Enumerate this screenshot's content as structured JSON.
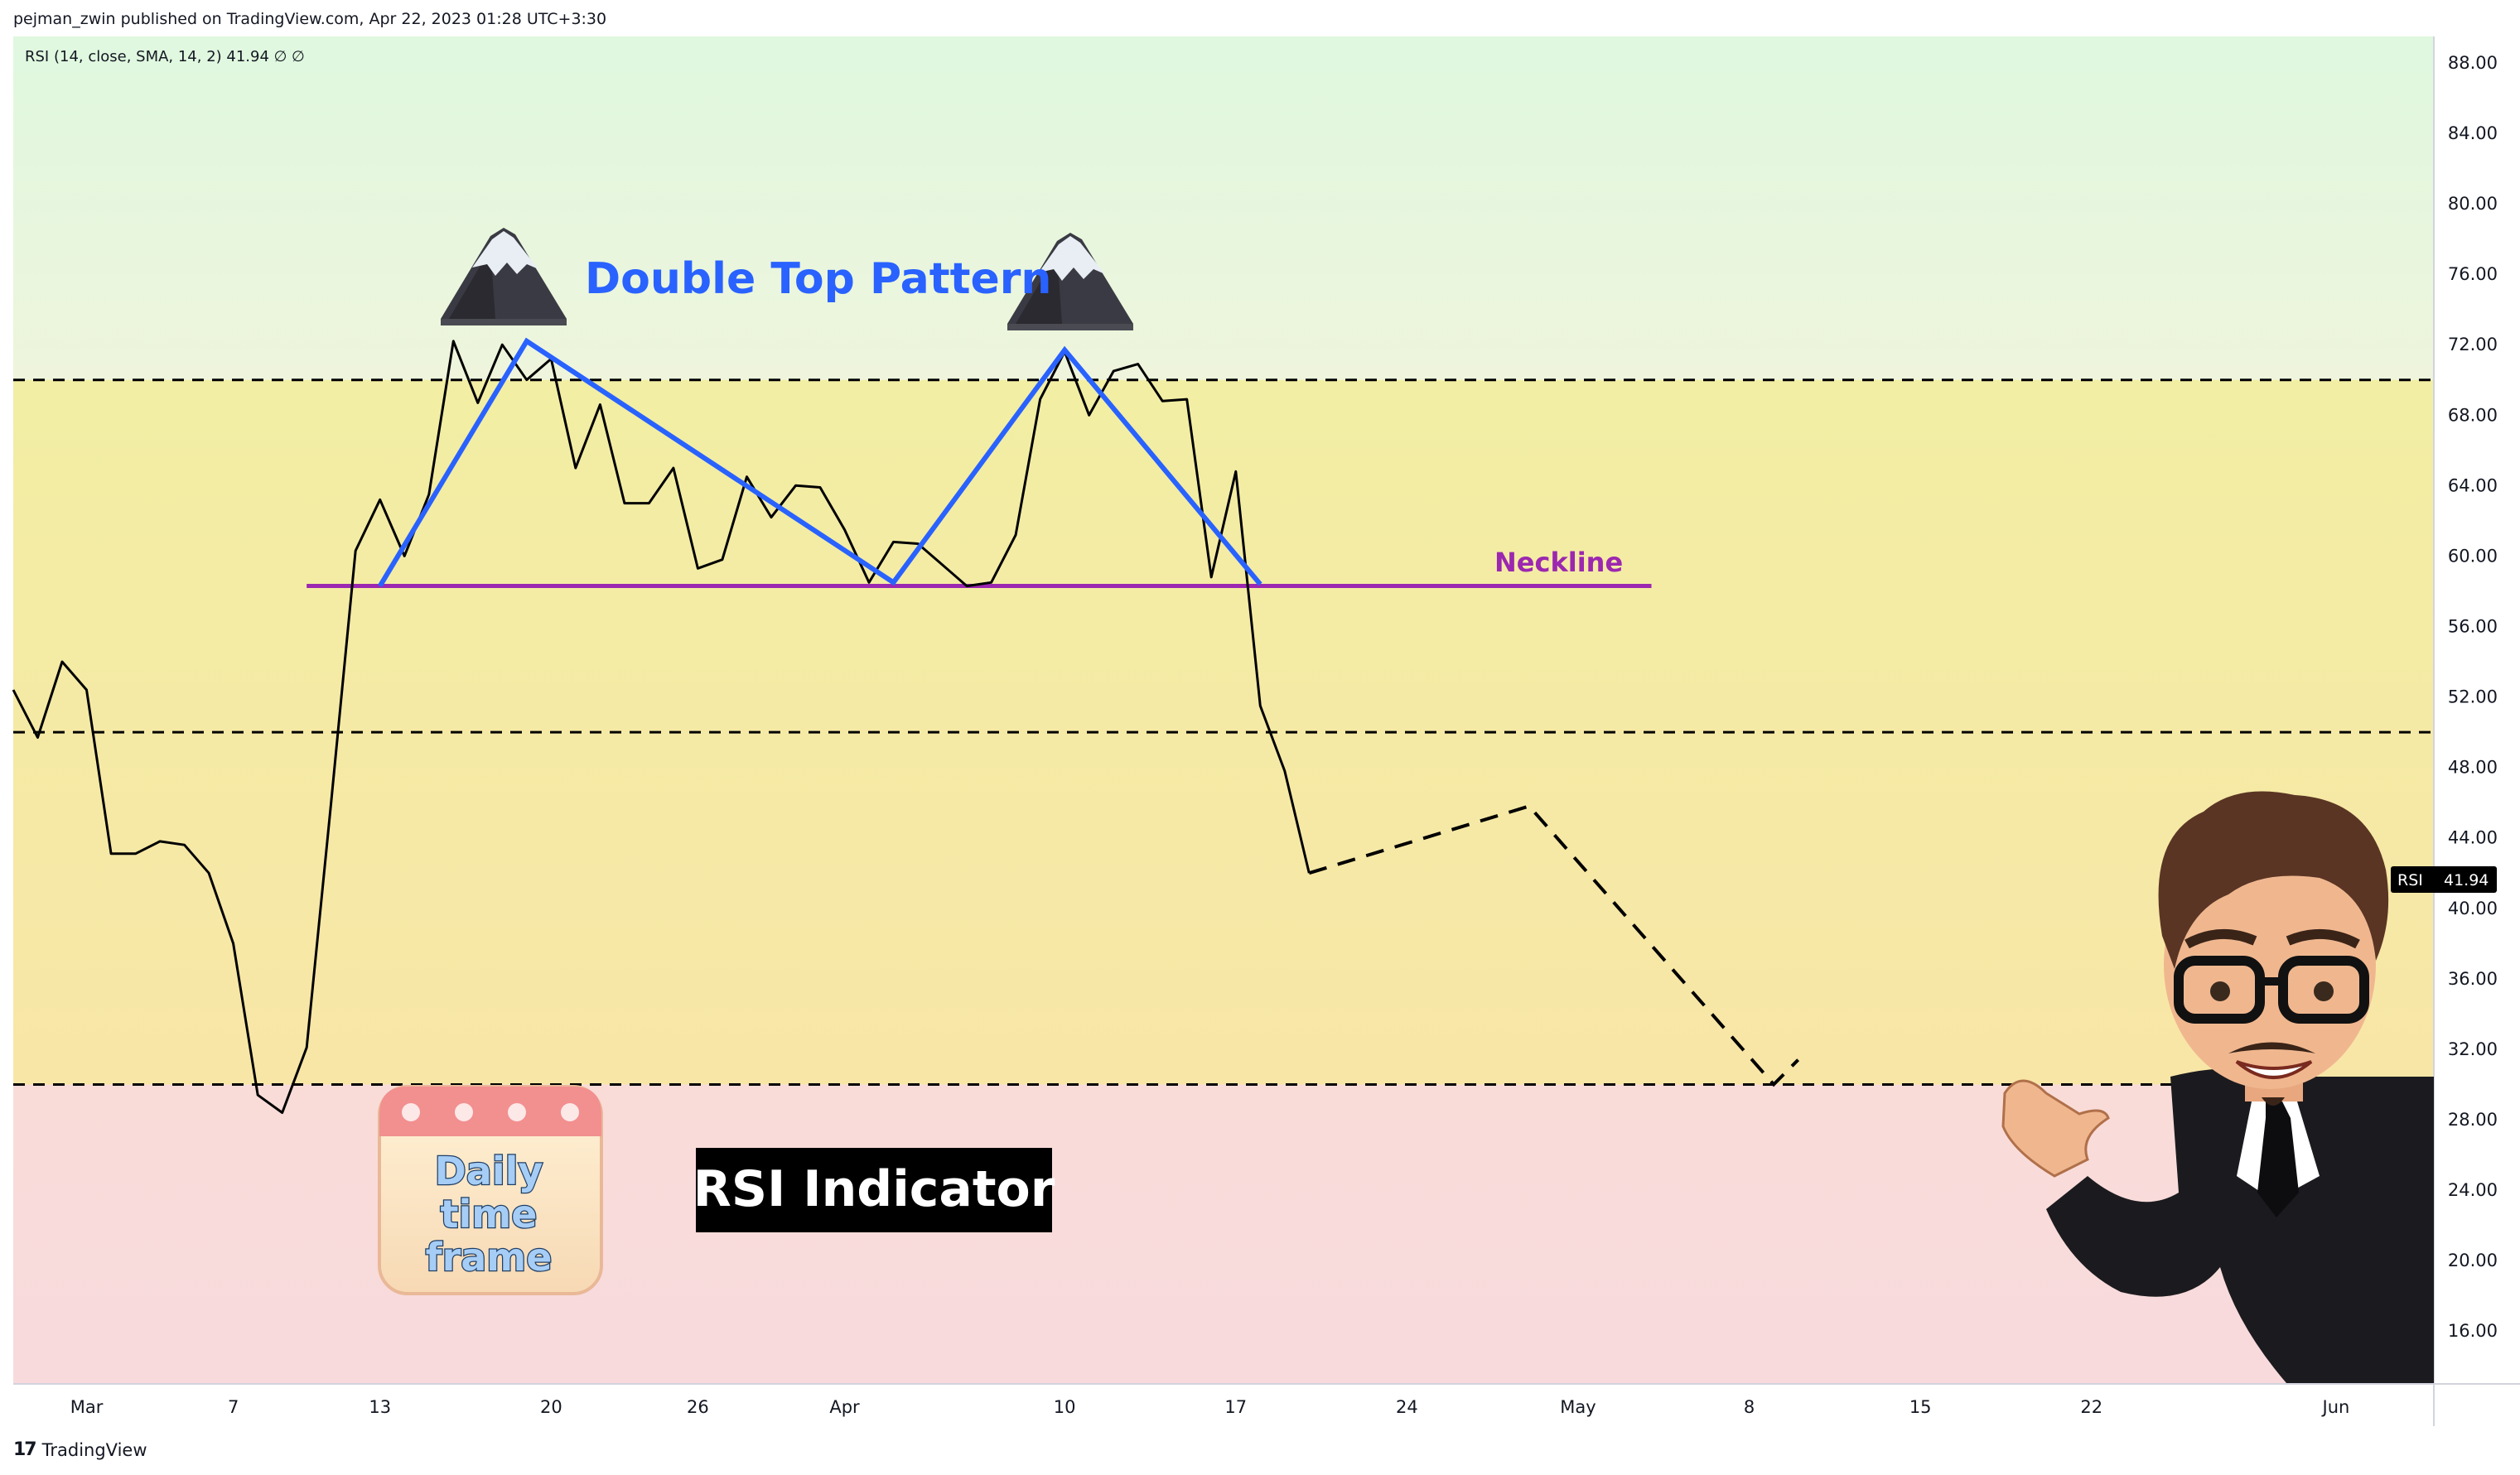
{
  "header": {
    "published": "pejman_zwin published on TradingView.com, Apr 22, 2023 01:28 UTC+3:30"
  },
  "legend": {
    "text": "RSI (14, close, SMA, 14, 2)  41.94  ∅  ∅"
  },
  "footer": {
    "logo": "17",
    "brand": "TradingView"
  },
  "colors": {
    "rsi_line": "#000000",
    "pattern_line": "#2962ff",
    "neckline": "#9c27b0",
    "zone_overbought": "#e3f9df",
    "zone_mid": "#f5eeaa",
    "zone_oversold": "#f8dada",
    "badge_bg": "#000000"
  },
  "annotations": {
    "pattern_title": "Double Top Pattern",
    "neckline_label": "Neckline",
    "rsi_indicator": "RSI Indicator",
    "calendar_text": [
      "Daily",
      "time",
      "frame"
    ],
    "mountain_icon": "mountain-icon",
    "calendar_icon": "calendar-icon",
    "avatar": "avatar-presenter"
  },
  "badge": {
    "name": "RSI",
    "value": "41.94"
  },
  "chart_data": {
    "type": "line",
    "y_axis": {
      "ticks": [
        "88.00",
        "84.00",
        "80.00",
        "76.00",
        "72.00",
        "68.00",
        "64.00",
        "60.00",
        "56.00",
        "52.00",
        "48.00",
        "44.00",
        "40.00",
        "36.00",
        "32.00",
        "28.00",
        "24.00",
        "20.00",
        "16.00"
      ],
      "ylim": [
        13.0,
        89.5
      ]
    },
    "x_axis": {
      "ticks": [
        {
          "label": "Mar",
          "date": "2023-03-01"
        },
        {
          "label": "7",
          "date": "2023-03-07"
        },
        {
          "label": "13",
          "date": "2023-03-13"
        },
        {
          "label": "20",
          "date": "2023-03-20"
        },
        {
          "label": "26",
          "date": "2023-03-26"
        },
        {
          "label": "Apr",
          "date": "2023-04-01"
        },
        {
          "label": "10",
          "date": "2023-04-10"
        },
        {
          "label": "17",
          "date": "2023-04-17"
        },
        {
          "label": "24",
          "date": "2023-04-24"
        },
        {
          "label": "May",
          "date": "2023-05-01"
        },
        {
          "label": "8",
          "date": "2023-05-08"
        },
        {
          "label": "15",
          "date": "2023-05-15"
        },
        {
          "label": "22",
          "date": "2023-05-22"
        },
        {
          "label": "Jun",
          "date": "2023-06-01"
        }
      ],
      "xlim": [
        "2023-02-26",
        "2023-06-05"
      ]
    },
    "levels": [
      70,
      50,
      30
    ],
    "zones": [
      {
        "from": 70,
        "to": 89.5,
        "color": "#e3f9df"
      },
      {
        "from": 30,
        "to": 70,
        "color": "#f5eeaa"
      },
      {
        "from": 13,
        "to": 30,
        "color": "#f8dada"
      }
    ],
    "series": [
      {
        "values": [
          [
            "2023-02-26",
            52.4
          ],
          [
            "2023-02-27",
            49.7
          ],
          [
            "2023-02-28",
            54.0
          ],
          [
            "2023-03-01",
            52.4
          ],
          [
            "2023-03-02",
            43.1
          ],
          [
            "2023-03-03",
            43.1
          ],
          [
            "2023-03-04",
            43.8
          ],
          [
            "2023-03-05",
            43.6
          ],
          [
            "2023-03-06",
            42.0
          ],
          [
            "2023-03-07",
            38.0
          ],
          [
            "2023-03-08",
            29.4
          ],
          [
            "2023-03-09",
            28.4
          ],
          [
            "2023-03-10",
            32.1
          ],
          [
            "2023-03-11",
            46.0
          ],
          [
            "2023-03-12",
            60.3
          ],
          [
            "2023-03-13",
            63.2
          ],
          [
            "2023-03-14",
            60.0
          ],
          [
            "2023-03-15",
            63.5
          ],
          [
            "2023-03-16",
            72.2
          ],
          [
            "2023-03-17",
            68.7
          ],
          [
            "2023-03-18",
            72.0
          ],
          [
            "2023-03-19",
            70.0
          ],
          [
            "2023-03-20",
            71.2
          ],
          [
            "2023-03-21",
            65.0
          ],
          [
            "2023-03-22",
            68.6
          ],
          [
            "2023-03-23",
            63.0
          ],
          [
            "2023-03-24",
            63.0
          ],
          [
            "2023-03-25",
            65.0
          ],
          [
            "2023-03-26",
            59.3
          ],
          [
            "2023-03-27",
            59.8
          ],
          [
            "2023-03-28",
            64.5
          ],
          [
            "2023-03-29",
            62.2
          ],
          [
            "2023-03-30",
            64.0
          ],
          [
            "2023-03-31",
            63.9
          ],
          [
            "2023-04-01",
            61.5
          ],
          [
            "2023-04-02",
            58.5
          ],
          [
            "2023-04-03",
            60.8
          ],
          [
            "2023-04-04",
            60.7
          ],
          [
            "2023-04-05",
            59.5
          ],
          [
            "2023-04-06",
            58.3
          ],
          [
            "2023-04-07",
            58.5
          ],
          [
            "2023-04-08",
            61.2
          ],
          [
            "2023-04-09",
            68.9
          ],
          [
            "2023-04-10",
            71.6
          ],
          [
            "2023-04-11",
            68.0
          ],
          [
            "2023-04-12",
            70.5
          ],
          [
            "2023-04-13",
            70.9
          ],
          [
            "2023-04-14",
            68.8
          ],
          [
            "2023-04-15",
            68.9
          ],
          [
            "2023-04-16",
            58.8
          ],
          [
            "2023-04-17",
            64.8
          ],
          [
            "2023-04-18",
            51.5
          ],
          [
            "2023-04-19",
            47.8
          ],
          [
            "2023-04-20",
            42.0
          ]
        ]
      }
    ],
    "projection": [
      [
        "2023-04-20",
        42.0
      ],
      [
        "2023-04-29",
        45.8
      ],
      [
        "2023-05-09",
        30.0
      ],
      [
        "2023-05-10",
        31.4
      ]
    ],
    "double_top": [
      [
        "2023-03-13",
        58.3
      ],
      [
        "2023-03-19",
        72.2
      ],
      [
        "2023-04-03",
        58.5
      ],
      [
        "2023-04-10",
        71.7
      ],
      [
        "2023-04-18",
        58.4
      ]
    ],
    "neckline": {
      "from": "2023-03-10",
      "to": "2023-05-04",
      "value": 58.3
    },
    "last_value": 41.94
  }
}
